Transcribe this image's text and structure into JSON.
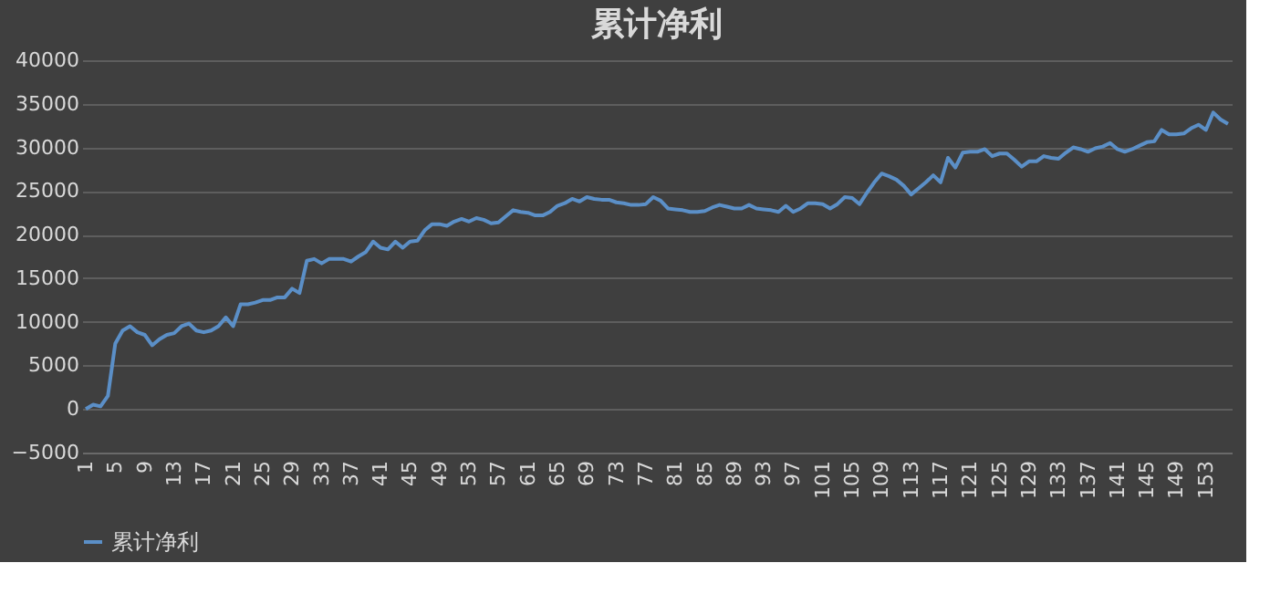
{
  "chart_data": {
    "type": "line",
    "title": "累计净利",
    "categories": [
      "1",
      null,
      null,
      null,
      "5",
      null,
      null,
      null,
      "9",
      null,
      null,
      null,
      "13",
      null,
      null,
      null,
      "17",
      null,
      null,
      null,
      "21",
      null,
      null,
      null,
      "25",
      null,
      null,
      null,
      "29",
      null,
      null,
      null,
      "33",
      null,
      null,
      null,
      "37",
      null,
      null,
      null,
      "41",
      null,
      null,
      null,
      "45",
      null,
      null,
      null,
      "49",
      null,
      null,
      null,
      "53",
      null,
      null,
      null,
      "57",
      null,
      null,
      null,
      "61",
      null,
      null,
      null,
      "65",
      null,
      null,
      null,
      "69",
      null,
      null,
      null,
      "73",
      null,
      null,
      null,
      "77",
      null,
      null,
      null,
      "81",
      null,
      null,
      null,
      "85",
      null,
      null,
      null,
      "89",
      null,
      null,
      null,
      "93",
      null,
      null,
      null,
      "97",
      null,
      null,
      null,
      "101",
      null,
      null,
      null,
      "105",
      null,
      null,
      null,
      "109",
      null,
      null,
      null,
      "113",
      null,
      null,
      null,
      "117",
      null,
      null,
      null,
      "121",
      null,
      null,
      null,
      "125",
      null,
      null,
      null,
      "129",
      null,
      null,
      null,
      "133",
      null,
      null,
      null,
      "137",
      null,
      null,
      null,
      "141",
      null,
      null,
      null,
      "145",
      null,
      null,
      null,
      "149",
      null,
      null,
      null,
      "153",
      null,
      null,
      null
    ],
    "series": [
      {
        "name": "累计净利",
        "color": "#5b8fc7",
        "values": [
          0,
          500,
          300,
          1500,
          7500,
          9000,
          9500,
          8800,
          8500,
          7300,
          8000,
          8500,
          8700,
          9500,
          9800,
          9000,
          8800,
          9000,
          9500,
          10500,
          9500,
          12000,
          12000,
          12200,
          12500,
          12500,
          12800,
          12800,
          13800,
          13300,
          17000,
          17200,
          16700,
          17200,
          17200,
          17200,
          16900,
          17500,
          18000,
          19200,
          18500,
          18300,
          19200,
          18500,
          19200,
          19300,
          20500,
          21200,
          21200,
          21000,
          21500,
          21800,
          21500,
          21900,
          21700,
          21300,
          21400,
          22100,
          22800,
          22600,
          22500,
          22200,
          22200,
          22600,
          23300,
          23600,
          24100,
          23800,
          24300,
          24100,
          24000,
          24000,
          23700,
          23600,
          23400,
          23400,
          23500,
          24300,
          23900,
          23000,
          22900,
          22800,
          22600,
          22600,
          22700,
          23100,
          23400,
          23200,
          23000,
          23000,
          23400,
          23000,
          22900,
          22800,
          22600,
          23300,
          22600,
          23000,
          23600,
          23600,
          23500,
          23000,
          23500,
          24300,
          24200,
          23500,
          24800,
          26000,
          27000,
          26700,
          26300,
          25600,
          24600,
          25300,
          26000,
          26800,
          26000,
          28800,
          27700,
          29400,
          29500,
          29500,
          29800,
          29000,
          29300,
          29300,
          28600,
          27800,
          28400,
          28400,
          29000,
          28800,
          28700,
          29400,
          30000,
          29800,
          29500,
          29900,
          30100,
          30500,
          29800,
          29500,
          29800,
          30200,
          30600,
          30700,
          32000,
          31500,
          31500,
          31600,
          32200,
          32600,
          32000,
          34000,
          33200,
          32700
        ]
      }
    ],
    "ylim": [
      -5000,
      40000
    ],
    "yticks": [
      -5000,
      0,
      5000,
      10000,
      15000,
      20000,
      25000,
      30000,
      35000,
      40000
    ],
    "grid": "y",
    "legend": "bottom",
    "line_style": "solid",
    "marker": "none"
  }
}
